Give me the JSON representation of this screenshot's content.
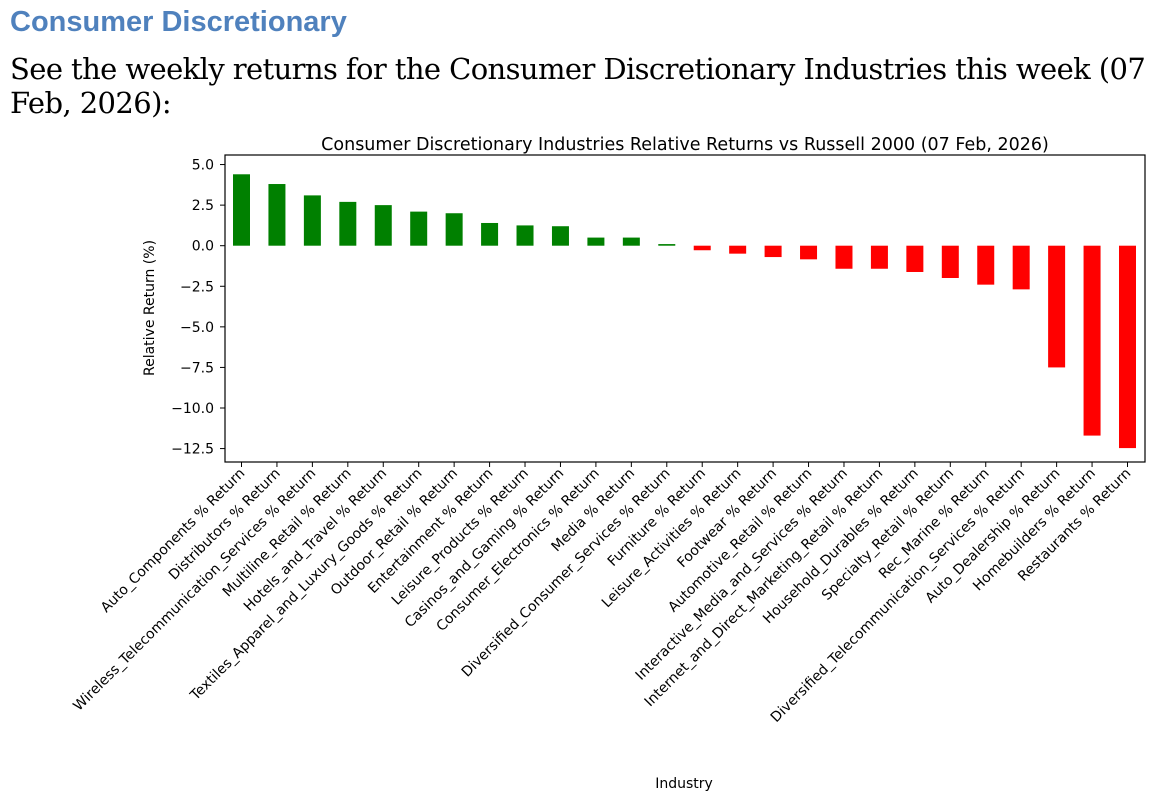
{
  "heading": "Consumer Discretionary",
  "intro": "See the weekly returns for the Consumer Discretionary Industries this week (07 Feb, 2026):",
  "chart_data": {
    "type": "bar",
    "title": "Consumer Discretionary Industries Relative Returns vs Russell 2000 (07 Feb, 2026)",
    "xlabel": "Industry",
    "ylabel": "Relative Return (%)",
    "ylim": [
      -13.5,
      5.6
    ],
    "yticks": [
      "5.0",
      "2.5",
      "0.0",
      "−2.5",
      "−5.0",
      "−7.5",
      "−10.0",
      "−12.5"
    ],
    "ytick_values": [
      5,
      2.5,
      0,
      -2.5,
      -5,
      -7.5,
      -10,
      -12.5
    ],
    "positive_color": "#008000",
    "negative_color": "#ff0000",
    "categories": [
      "Auto_Components % Return",
      "Distributors % Return",
      "Wireless_Telecommunication_Services % Return",
      "Multiline_Retail % Return",
      "Hotels_and_Travel % Return",
      "Textiles_Apparel_and_Luxury_Goods % Return",
      "Outdoor_Retail % Return",
      "Entertainment % Return",
      "Leisure_Products % Return",
      "Casinos_and_Gaming % Return",
      "Consumer_Electronics % Return",
      "Media % Return",
      "Diversified_Consumer_Services % Return",
      "Furniture % Return",
      "Leisure_Activities % Return",
      "Footwear % Return",
      "Automotive_Retail % Return",
      "Interactive_Media_and_Services % Return",
      "Internet_and_Direct_Marketing_Retail % Return",
      "Household_Durables % Return",
      "Specialty_Retail % Return",
      "Rec_Marine % Return",
      "Diversified_Telecommunication_Services % Return",
      "Auto_Dealership % Return",
      "Homebuilders % Return",
      "Restaurants % Return"
    ],
    "values": [
      4.4,
      3.8,
      3.1,
      2.7,
      2.5,
      2.1,
      2.0,
      1.4,
      1.25,
      1.2,
      0.5,
      0.5,
      0.1,
      -0.28,
      -0.49,
      -0.7,
      -0.84,
      -1.42,
      -1.42,
      -1.62,
      -1.99,
      -2.4,
      -2.69,
      -7.5,
      -11.7,
      -12.47
    ]
  }
}
